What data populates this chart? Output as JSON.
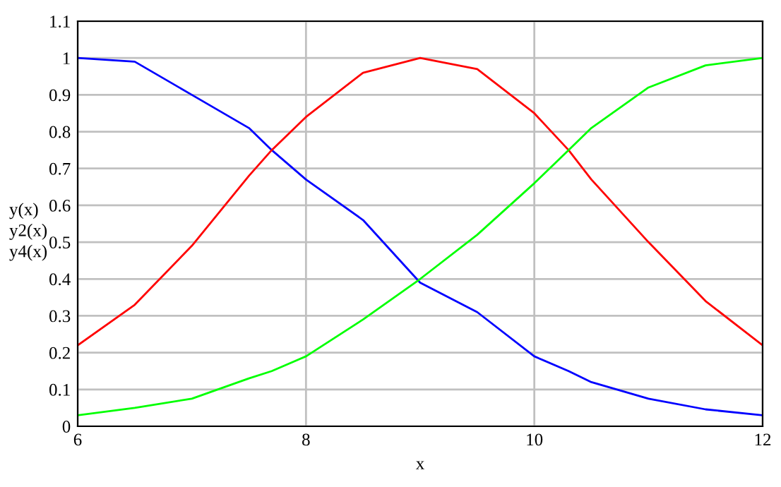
{
  "chart_data": {
    "type": "line",
    "xlabel": "x",
    "ylabel": "y(x)\ny2(x)\ny4(x)",
    "x": [
      6,
      6.5,
      7,
      7.5,
      7.7,
      8,
      8.5,
      9,
      9.5,
      10,
      10.3,
      10.5,
      11,
      11.5,
      12
    ],
    "series": [
      {
        "color": "#0000ff",
        "values": [
          1.0,
          0.99,
          0.9,
          0.81,
          0.75,
          0.67,
          0.56,
          0.39,
          0.31,
          0.19,
          0.15,
          0.12,
          0.075,
          0.046,
          0.03
        ]
      },
      {
        "color": "#ff0000",
        "values": [
          0.22,
          0.33,
          0.49,
          0.68,
          0.75,
          0.84,
          0.96,
          1.0,
          0.97,
          0.85,
          0.75,
          0.67,
          0.5,
          0.34,
          0.22
        ]
      },
      {
        "color": "#00ff00",
        "values": [
          0.03,
          0.05,
          0.075,
          0.13,
          0.15,
          0.19,
          0.29,
          0.4,
          0.52,
          0.66,
          0.75,
          0.81,
          0.92,
          0.98,
          1.0
        ]
      }
    ],
    "xlim": [
      6,
      12
    ],
    "xticks": [
      6,
      8,
      10,
      12
    ],
    "ylim": [
      0,
      1.1
    ],
    "yticks": [
      0,
      0.1,
      0.2,
      0.3,
      0.4,
      0.5,
      0.6,
      0.7,
      0.8,
      0.9,
      1,
      1.1
    ],
    "grid": true,
    "marker": "none",
    "line_style": "solid"
  }
}
